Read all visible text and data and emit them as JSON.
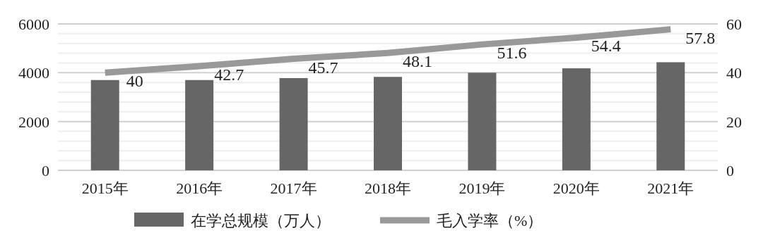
{
  "chart_data": {
    "type": "bar",
    "categories": [
      "2015年",
      "2016年",
      "2017年",
      "2018年",
      "2019年",
      "2020年",
      "2021年"
    ],
    "series": [
      {
        "name": "在学总规模（万人）",
        "color": "#666666",
        "values": [
          3700,
          3700,
          3780,
          3830,
          4000,
          4180,
          4430
        ]
      },
      {
        "name": "毛入学率（%）",
        "type": "line",
        "axis": "y2",
        "color": "#999999",
        "values": [
          40,
          42.7,
          45.7,
          48.1,
          51.6,
          54.4,
          57.8
        ],
        "value_labels": [
          "40",
          "42.7",
          "45.7",
          "48.1",
          "51.6",
          "54.4",
          "57.8"
        ]
      }
    ],
    "ylim": [
      0,
      6000
    ],
    "yticks": [
      0,
      {
        "value": 400,
        "label": null
      },
      {
        "value": 800,
        "label": null
      },
      {
        "value": 1200,
        "label": null
      },
      {
        "value": 1600,
        "label": null
      },
      2000,
      {
        "value": 2400,
        "label": null
      },
      {
        "value": 2800,
        "label": null
      },
      {
        "value": 3200,
        "label": null
      },
      {
        "value": 3600,
        "label": null
      },
      4000,
      {
        "value": 4400,
        "label": null
      },
      {
        "value": 4800,
        "label": null
      },
      {
        "value": 5200,
        "label": null
      },
      {
        "value": 5600,
        "label": null
      },
      6000
    ],
    "y2lim": [
      0,
      60
    ],
    "y2ticks": [
      0,
      20,
      40,
      60
    ],
    "grid": "y",
    "legend": "bottom"
  }
}
